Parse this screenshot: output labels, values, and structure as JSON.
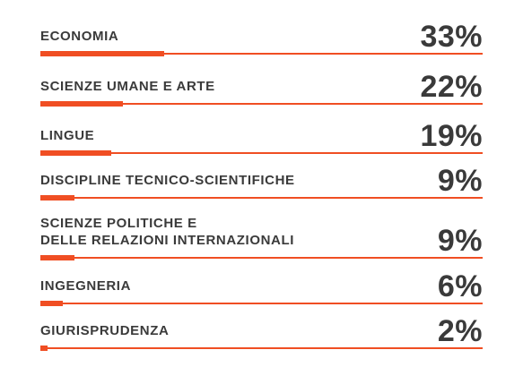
{
  "colors": {
    "text": "#3a3a3a",
    "accent": "#f04e23"
  },
  "chart_data": {
    "type": "bar",
    "categories": [
      "ECONOMIA",
      "SCIENZE UMANE E ARTE",
      "LINGUE",
      "DISCIPLINE TECNICO-SCIENTIFICHE",
      "SCIENZE POLITICHE E\nDELLE RELAZIONI INTERNAZIONALI",
      "INGEGNERIA",
      "GIURISPRUDENZA"
    ],
    "values": [
      33,
      22,
      19,
      9,
      9,
      6,
      2
    ],
    "value_labels": [
      "33%",
      "22%",
      "19%",
      "9%",
      "9%",
      "6%",
      "2%"
    ],
    "unit": "%",
    "xlim": [
      0,
      100
    ],
    "orientation": "horizontal",
    "grid": false,
    "legend": "none"
  }
}
